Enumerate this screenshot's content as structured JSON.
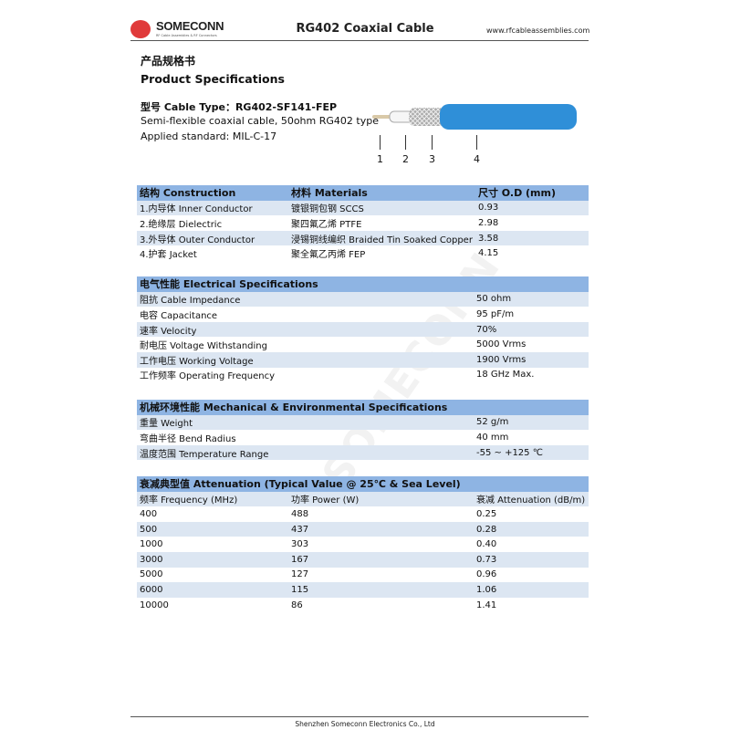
{
  "header": {
    "brand": "SOMECONN",
    "brand_tagline": "RF Cable Assemblies & RF Connectors",
    "title": "RG402 Coaxial Cable",
    "website": "www.rfcableassemblies.com"
  },
  "intro": {
    "title_cn": "产品规格书",
    "title_en": "Product Specifications",
    "cable_type": "型号 Cable Type：RG402-SF141-FEP",
    "description": "Semi-flexible coaxial cable, 50ohm RG402 type",
    "standard": "Applied standard: MIL-C-17",
    "diagram_labels": [
      "1",
      "2",
      "3",
      "4"
    ]
  },
  "construction": {
    "headers": [
      "结构 Construction",
      "材料 Materials",
      "尺寸 O.D (mm)"
    ],
    "rows": [
      [
        "1.内导体 Inner Conductor",
        "镀银铜包钢 SCCS",
        "0.93"
      ],
      [
        "2.绝缘层 Dielectric",
        "聚四氟乙烯 PTFE",
        "2.98"
      ],
      [
        "3.外导体 Outer Conductor",
        "浸锡铜线编织 Braided Tin Soaked Copper",
        "3.58"
      ],
      [
        "4.护套 Jacket",
        "聚全氟乙丙烯 FEP",
        "4.15"
      ]
    ]
  },
  "electrical": {
    "header": "电气性能 Electrical Specifications",
    "rows": [
      [
        "阻抗 Cable Impedance",
        "50 ohm"
      ],
      [
        "电容 Capacitance",
        "95 pF/m"
      ],
      [
        "速率 Velocity",
        "70%"
      ],
      [
        "耐电压 Voltage Withstanding",
        "5000 Vrms"
      ],
      [
        "工作电压 Working Voltage",
        "1900 Vrms"
      ],
      [
        "工作频率 Operating Frequency",
        "18 GHz Max."
      ]
    ]
  },
  "mechanical": {
    "header": "机械环境性能 Mechanical & Environmental Specifications",
    "rows": [
      [
        "重量 Weight",
        "52 g/m"
      ],
      [
        "弯曲半径 Bend Radius",
        "40 mm"
      ],
      [
        "温度范围 Temperature Range",
        "-55 ~ +125 ℃"
      ]
    ]
  },
  "attenuation": {
    "header": "衰减典型值 Attenuation (Typical Value @ 25℃ & Sea Level)",
    "columns": [
      "频率 Frequency (MHz)",
      "功率 Power (W)",
      "衰减 Attenuation (dB/m)"
    ],
    "rows": [
      [
        "400",
        "488",
        "0.25"
      ],
      [
        "500",
        "437",
        "0.28"
      ],
      [
        "1000",
        "303",
        "0.40"
      ],
      [
        "3000",
        "167",
        "0.73"
      ],
      [
        "5000",
        "127",
        "0.96"
      ],
      [
        "6000",
        "115",
        "1.06"
      ],
      [
        "10000",
        "86",
        "1.41"
      ]
    ]
  },
  "watermark": "SOMECONN",
  "footer": "Shenzhen Someconn Electronics Co., Ltd",
  "colors": {
    "header_row": "#8eb4e3",
    "shaded_row": "#dce6f2",
    "jacket": "#2f8fd8",
    "logo": "#e03a3a"
  }
}
